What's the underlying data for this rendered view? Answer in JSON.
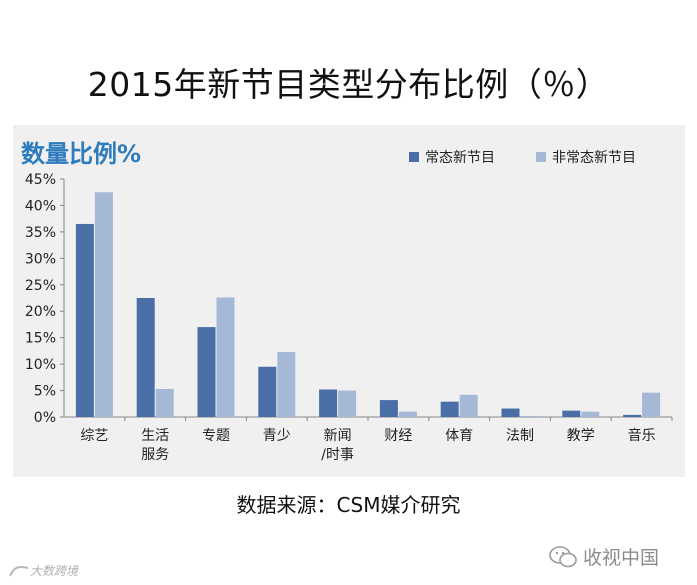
{
  "title": "2015年新节目类型分布比例（％）",
  "source": "数据来源：CSM媒介研究",
  "watermark": {
    "wechat_label": "收视中国",
    "logo_text": "大数跨境"
  },
  "colors": {
    "panel_bg": "#f0f0f0",
    "title_blue": "#2e7bbd",
    "series_dark": "#4a6fa6",
    "series_light": "#a5b9d7"
  },
  "chart_data": {
    "type": "bar",
    "title": "数量比例%",
    "categories": [
      "综艺",
      "生活\n服务",
      "专题",
      "青少",
      "新闻\n/时事",
      "财经",
      "体育",
      "法制",
      "教学",
      "音乐"
    ],
    "series": [
      {
        "name": "常态新节目",
        "color": "#4a6fa6",
        "values": [
          36.5,
          22.5,
          17.0,
          9.5,
          5.2,
          3.2,
          2.9,
          1.6,
          1.2,
          0.4
        ]
      },
      {
        "name": "非常态新节目",
        "color": "#a5b9d7",
        "values": [
          42.5,
          5.3,
          22.6,
          12.3,
          5.0,
          1.0,
          4.2,
          0.2,
          1.0,
          4.6
        ]
      }
    ],
    "yticks": [
      "0%",
      "5%",
      "10%",
      "15%",
      "20%",
      "25%",
      "30%",
      "35%",
      "40%",
      "45%"
    ],
    "ylim": [
      0,
      45
    ],
    "grid": false,
    "legend": "top-right"
  }
}
